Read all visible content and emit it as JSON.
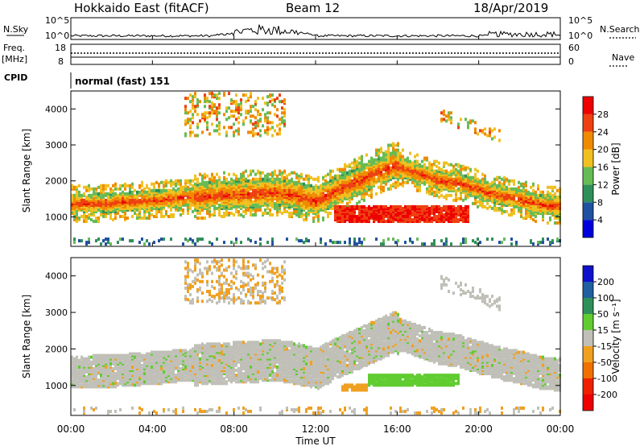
{
  "header": {
    "station": "Hokkaido East (fitACF)",
    "beam": "Beam 12",
    "date": "18/Apr/2019"
  },
  "top_panels": {
    "nsky_label": "N.Sky",
    "nsky_ticks": [
      "10^5",
      "10^0"
    ],
    "nsearch_label": "N.Search",
    "nsearch_ticks": [
      "10^5",
      "10^0"
    ],
    "freq_label": "Freq.",
    "freq_unit": "[MHz]",
    "freq_ticks": [
      "18",
      "8"
    ],
    "nave_label": "Nave",
    "nave_ticks": [
      "60",
      "0"
    ],
    "cpid_label": "CPID",
    "cpid_text": "normal (fast) 151"
  },
  "chart_data": [
    {
      "type": "heatmap",
      "name": "power",
      "ylabel": "Slant Range [km]",
      "ylim": [
        180,
        4500
      ],
      "yticks": [
        1000,
        2000,
        3000,
        4000
      ],
      "x_ticks": [
        "00:00",
        "04:00",
        "08:00",
        "12:00",
        "16:00",
        "20:00",
        "00:00"
      ],
      "colorbar": {
        "label": "Power [dB]",
        "ticks": [
          "4",
          "8",
          "12",
          "16",
          "20",
          "24",
          "28"
        ],
        "colors": [
          "#0000dd",
          "#2050a0",
          "#2f8f5a",
          "#66bb55",
          "#f0c020",
          "#f08a00",
          "#ee4010",
          "#ee0000"
        ]
      }
    },
    {
      "type": "heatmap",
      "name": "velocity",
      "ylabel": "Slant Range [km]",
      "ylim": [
        180,
        4500
      ],
      "yticks": [
        1000,
        2000,
        3000,
        4000
      ],
      "x_ticks": [
        "00:00",
        "04:00",
        "08:00",
        "12:00",
        "16:00",
        "20:00",
        "00:00"
      ],
      "xlabel": "Time UT",
      "colorbar": {
        "label": "Velocity [m s⁻¹]",
        "ticks": [
          "200",
          "100",
          "50",
          "15",
          "-15",
          "-50",
          "-100",
          "-200"
        ],
        "colors": [
          "#1010cc",
          "#2060a0",
          "#2f8f5a",
          "#60cc30",
          "#c0c0b8",
          "#f0a020",
          "#f07000",
          "#ee2000",
          "#ee0000"
        ]
      }
    }
  ],
  "colors": {
    "power_red": "#ee2200",
    "power_orange": "#f08a00",
    "power_yellow": "#f0c020",
    "power_green": "#66bb55",
    "vel_grey": "#c0c0b8",
    "vel_green": "#60cc30",
    "vel_orange": "#f0a020"
  }
}
